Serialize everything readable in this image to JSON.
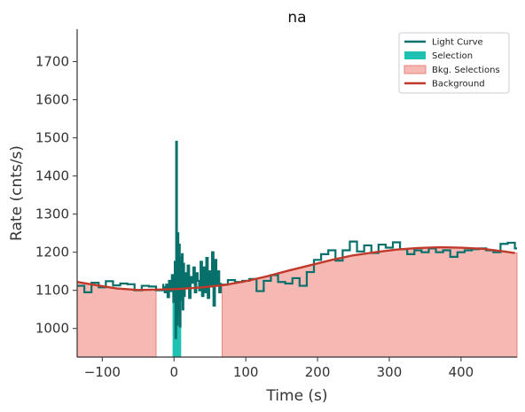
{
  "chart_data": {
    "type": "line",
    "title": "na",
    "xlabel": "Time (s)",
    "ylabel": "Rate (cnts/s)",
    "xlim": [
      -135,
      478
    ],
    "ylim": [
      925,
      1785
    ],
    "xticks": [
      -100,
      0,
      100,
      200,
      300,
      400
    ],
    "xtick_labels": [
      "−100",
      "0",
      "100",
      "200",
      "300",
      "400"
    ],
    "yticks": [
      1000,
      1100,
      1200,
      1300,
      1400,
      1500,
      1600,
      1700
    ],
    "ytick_labels": [
      "1000",
      "1100",
      "1200",
      "1300",
      "1400",
      "1500",
      "1600",
      "1700"
    ],
    "grid": false,
    "legend_position": "top-right",
    "legend": {
      "light_curve": "Light Curve",
      "selection": "Selection",
      "bkg_selections": "Bkg. Selections",
      "background": "Background"
    },
    "colors": {
      "light_curve": "#08706b",
      "selection": "#1fc2b2",
      "bkg_fill": "#f5b8b3",
      "bkg_edge": "#e8857d",
      "background": "#c0392b"
    },
    "light_curve_left": {
      "x": [
        -135,
        -125,
        -115,
        -105,
        -95,
        -85,
        -75,
        -65,
        -55,
        -45,
        -35,
        -25,
        -15
      ],
      "y": [
        1112,
        1095,
        1120,
        1108,
        1124,
        1113,
        1118,
        1116,
        1100,
        1112,
        1110,
        1100,
        1117
      ]
    },
    "light_curve_right": {
      "x": [
        65,
        75,
        85,
        95,
        105,
        115,
        125,
        135,
        145,
        155,
        165,
        175,
        185,
        195,
        205,
        215,
        225,
        235,
        245,
        255,
        265,
        275,
        285,
        295,
        305,
        315,
        325,
        335,
        345,
        355,
        365,
        375,
        385,
        395,
        405,
        415,
        425,
        435,
        445,
        455,
        465,
        475
      ],
      "y": [
        1115,
        1127,
        1122,
        1125,
        1130,
        1098,
        1125,
        1140,
        1122,
        1118,
        1132,
        1112,
        1148,
        1180,
        1195,
        1205,
        1178,
        1205,
        1228,
        1202,
        1218,
        1198,
        1220,
        1212,
        1226,
        1208,
        1195,
        1205,
        1200,
        1210,
        1200,
        1205,
        1188,
        1200,
        1205,
        1208,
        1210,
        1205,
        1200,
        1222,
        1225,
        1210
      ]
    },
    "light_curve_burst": {
      "x": [
        -15,
        -13,
        -11,
        -9,
        -7,
        -5,
        -3,
        -1,
        1,
        2,
        3,
        4,
        5,
        6,
        7,
        8,
        9,
        10,
        11,
        12,
        13,
        14,
        15,
        17,
        19,
        21,
        23,
        25,
        27,
        29,
        31,
        33,
        35,
        37,
        39,
        41,
        43,
        45,
        47,
        49,
        51,
        53,
        55,
        57,
        59,
        61,
        63,
        65
      ],
      "y": [
        1108,
        1095,
        1115,
        1082,
        1125,
        1098,
        1140,
        1070,
        1175,
        975,
        1490,
        1010,
        1250,
        1040,
        1220,
        1005,
        1185,
        1075,
        1195,
        1050,
        1170,
        1085,
        1145,
        1110,
        1165,
        1080,
        1135,
        1120,
        1160,
        1095,
        1145,
        1125,
        1100,
        1175,
        1085,
        1160,
        1095,
        1185,
        1080,
        1150,
        1110,
        1200,
        1060,
        1180,
        1115,
        1150,
        1095,
        1120
      ]
    },
    "selection_range": [
      -2,
      10
    ],
    "bkg_selections": [
      [
        -135,
        -25
      ],
      [
        67,
        478
      ]
    ],
    "background_model": {
      "x": [
        -135,
        -110,
        -80,
        -50,
        -20,
        10,
        40,
        70,
        100,
        130,
        160,
        190,
        220,
        250,
        280,
        310,
        340,
        370,
        400,
        430,
        460,
        475
      ],
      "y": [
        1122,
        1114,
        1105,
        1101,
        1102,
        1104,
        1108,
        1114,
        1124,
        1137,
        1152,
        1166,
        1180,
        1192,
        1200,
        1207,
        1211,
        1213,
        1212,
        1209,
        1202,
        1198
      ]
    }
  }
}
